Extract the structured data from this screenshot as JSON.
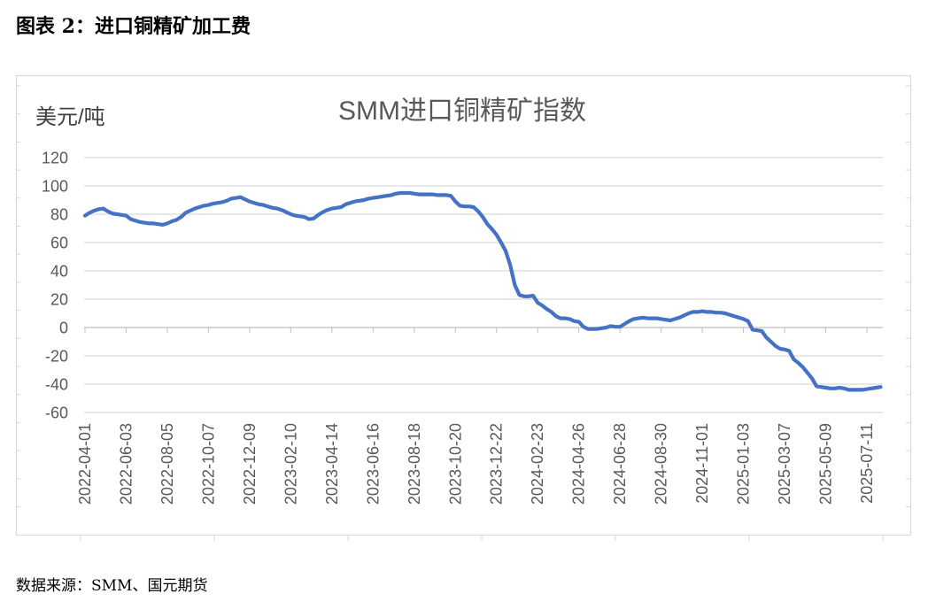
{
  "header": {
    "figure_title": "图表 2：进口铜精矿加工费"
  },
  "chart_data": {
    "type": "line",
    "title": "SMM进口铜精矿指数",
    "ylabel": "美元/吨",
    "xlabel": "",
    "ylim": [
      -60,
      120
    ],
    "y_ticks": [
      120,
      100,
      80,
      60,
      40,
      20,
      0,
      -20,
      -40,
      -60
    ],
    "grid": true,
    "legend": false,
    "x_tick_labels": [
      "2022-04-01",
      "2022-06-03",
      "2022-08-05",
      "2022-10-07",
      "2022-12-09",
      "2023-02-10",
      "2023-04-14",
      "2023-06-16",
      "2023-08-18",
      "2023-10-20",
      "2023-12-22",
      "2024-02-23",
      "2024-04-26",
      "2024-06-28",
      "2024-08-30",
      "2024-11-01",
      "2025-01-03",
      "2025-03-07",
      "2025-05-09",
      "2025-07-11"
    ],
    "x": [
      "2022-04-01",
      "2022-04-08",
      "2022-04-15",
      "2022-04-22",
      "2022-04-29",
      "2022-05-06",
      "2022-05-13",
      "2022-05-20",
      "2022-05-27",
      "2022-06-03",
      "2022-06-10",
      "2022-06-17",
      "2022-06-24",
      "2022-07-01",
      "2022-07-08",
      "2022-07-15",
      "2022-07-22",
      "2022-07-29",
      "2022-08-05",
      "2022-08-12",
      "2022-08-19",
      "2022-08-26",
      "2022-09-02",
      "2022-09-09",
      "2022-09-16",
      "2022-09-23",
      "2022-09-30",
      "2022-10-07",
      "2022-10-14",
      "2022-10-21",
      "2022-10-28",
      "2022-11-04",
      "2022-11-11",
      "2022-11-18",
      "2022-11-25",
      "2022-12-02",
      "2022-12-09",
      "2022-12-16",
      "2022-12-23",
      "2022-12-30",
      "2023-01-06",
      "2023-01-13",
      "2023-01-20",
      "2023-01-27",
      "2023-02-03",
      "2023-02-10",
      "2023-02-17",
      "2023-02-24",
      "2023-03-03",
      "2023-03-10",
      "2023-03-17",
      "2023-03-24",
      "2023-03-31",
      "2023-04-07",
      "2023-04-14",
      "2023-04-21",
      "2023-04-28",
      "2023-05-05",
      "2023-05-12",
      "2023-05-19",
      "2023-05-26",
      "2023-06-02",
      "2023-06-09",
      "2023-06-16",
      "2023-06-23",
      "2023-06-30",
      "2023-07-07",
      "2023-07-14",
      "2023-07-21",
      "2023-07-28",
      "2023-08-04",
      "2023-08-11",
      "2023-08-18",
      "2023-08-25",
      "2023-09-01",
      "2023-09-08",
      "2023-09-15",
      "2023-09-22",
      "2023-09-29",
      "2023-10-06",
      "2023-10-13",
      "2023-10-20",
      "2023-10-27",
      "2023-11-03",
      "2023-11-10",
      "2023-11-17",
      "2023-11-24",
      "2023-12-01",
      "2023-12-08",
      "2023-12-15",
      "2023-12-22",
      "2023-12-29",
      "2024-01-05",
      "2024-01-12",
      "2024-01-19",
      "2024-01-26",
      "2024-02-02",
      "2024-02-09",
      "2024-02-16",
      "2024-02-23",
      "2024-03-01",
      "2024-03-08",
      "2024-03-15",
      "2024-03-22",
      "2024-03-29",
      "2024-04-05",
      "2024-04-12",
      "2024-04-19",
      "2024-04-26",
      "2024-05-03",
      "2024-05-10",
      "2024-05-17",
      "2024-05-24",
      "2024-05-31",
      "2024-06-07",
      "2024-06-14",
      "2024-06-21",
      "2024-06-28",
      "2024-07-05",
      "2024-07-12",
      "2024-07-19",
      "2024-07-26",
      "2024-08-02",
      "2024-08-09",
      "2024-08-16",
      "2024-08-23",
      "2024-08-30",
      "2024-09-06",
      "2024-09-13",
      "2024-09-20",
      "2024-09-27",
      "2024-10-04",
      "2024-10-11",
      "2024-10-18",
      "2024-10-25",
      "2024-11-01",
      "2024-11-08",
      "2024-11-15",
      "2024-11-22",
      "2024-11-29",
      "2024-12-06",
      "2024-12-13",
      "2024-12-20",
      "2024-12-27",
      "2025-01-03",
      "2025-01-10",
      "2025-01-17",
      "2025-01-24",
      "2025-01-31",
      "2025-02-07",
      "2025-02-14",
      "2025-02-21",
      "2025-02-28",
      "2025-03-07",
      "2025-03-14",
      "2025-03-21",
      "2025-03-28",
      "2025-04-04",
      "2025-04-11",
      "2025-04-18",
      "2025-04-25",
      "2025-05-02",
      "2025-05-09",
      "2025-05-16",
      "2025-05-23",
      "2025-05-30",
      "2025-06-06",
      "2025-06-13",
      "2025-06-20",
      "2025-06-27",
      "2025-07-04",
      "2025-07-11",
      "2025-07-18",
      "2025-07-25",
      "2025-08-01"
    ],
    "series": [
      {
        "color": "#4472c4",
        "values": [
          79,
          81,
          82.5,
          83.5,
          84,
          82,
          80.5,
          80,
          79.5,
          79,
          76.5,
          75.5,
          74.5,
          74,
          73.5,
          73.5,
          73,
          72.5,
          73.5,
          75,
          76,
          78,
          81,
          82.5,
          84,
          85,
          86,
          86.5,
          87.5,
          88,
          88.5,
          89.5,
          91,
          91.5,
          92,
          90.5,
          89,
          88,
          87,
          86.5,
          85.5,
          84.5,
          84,
          83,
          81.5,
          80,
          79,
          78.5,
          78,
          76.5,
          77,
          79.5,
          81.5,
          83,
          84,
          84.5,
          85,
          87,
          88,
          89,
          89.5,
          90,
          91,
          91.5,
          92,
          92.5,
          93,
          93.5,
          94.5,
          95,
          95,
          95,
          94.5,
          94,
          94,
          94,
          94,
          93.5,
          93.5,
          93.5,
          93,
          89,
          86,
          85.5,
          85.5,
          85,
          82,
          78,
          73,
          69.5,
          65.5,
          60,
          54,
          44,
          30,
          23,
          22,
          22,
          22.5,
          17.5,
          15.5,
          13,
          11,
          8,
          6.5,
          6.5,
          6,
          4.5,
          4,
          0.5,
          -1,
          -1,
          -1,
          -0.5,
          0,
          1,
          0.5,
          0.5,
          2.5,
          4.5,
          6,
          6.5,
          7,
          6.5,
          6.5,
          6.5,
          6,
          5.5,
          5,
          6,
          7,
          8.5,
          10,
          11,
          11,
          11.5,
          11,
          11,
          10.5,
          10.5,
          10,
          9,
          8,
          7,
          6,
          4.5,
          -1.5,
          -2,
          -2.5,
          -7,
          -10,
          -13,
          -15,
          -15.5,
          -16.5,
          -22.5,
          -25,
          -28,
          -32,
          -36,
          -41.5,
          -42,
          -42.5,
          -43,
          -43,
          -42.5,
          -43,
          -44,
          -44,
          -44,
          -44,
          -43.5,
          -43,
          -42.5,
          -42
        ]
      }
    ]
  },
  "footer": {
    "source": "数据来源：SMM、国元期货"
  }
}
